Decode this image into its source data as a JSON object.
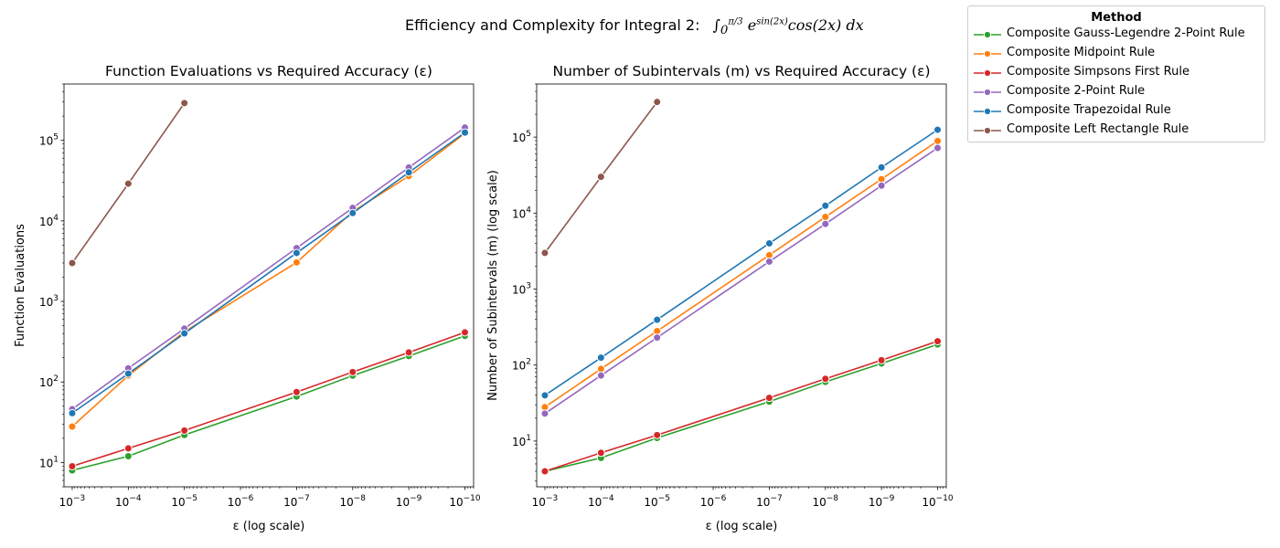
{
  "figure": {
    "suptitle_text": "Efficiency and Complexity for Integral 2:",
    "suptitle_math": "∫₀^(π/3) e^(sin(2x)) cos(2x) dx"
  },
  "legend": {
    "title": "Method",
    "items": [
      {
        "label": "Composite Gauss-Legendre 2-Point Rule",
        "color": "#2ca02c"
      },
      {
        "label": "Composite Midpoint Rule",
        "color": "#ff7f0e"
      },
      {
        "label": "Composite Simpsons First Rule",
        "color": "#d62728"
      },
      {
        "label": "Composite 2-Point Rule",
        "color": "#9467bd"
      },
      {
        "label": "Composite Trapezoidal Rule",
        "color": "#1f77b4"
      },
      {
        "label": "Composite Left Rectangle Rule",
        "color": "#8c564b"
      }
    ]
  },
  "chart_data": [
    {
      "type": "line",
      "title": "Function Evaluations vs Required Accuracy (ε)",
      "xlabel": "ε (log scale)",
      "ylabel": "Function Evaluations",
      "xscale": "log",
      "yscale": "log",
      "xlim": [
        0.0014,
        7e-11
      ],
      "ylim": [
        5,
        500000
      ],
      "x_ticks": [
        0.001,
        0.0001,
        1e-05,
        1e-06,
        1e-07,
        1e-08,
        1e-09,
        1e-10
      ],
      "y_ticks": [
        10,
        100,
        1000,
        10000,
        100000
      ],
      "legend": "outside-upper-right",
      "grid": false,
      "series": [
        {
          "name": "Composite Gauss-Legendre 2-Point Rule",
          "color": "#2ca02c",
          "x": [
            0.001,
            0.0001,
            1e-05,
            1e-07,
            1e-08,
            1e-09,
            1e-10
          ],
          "y": [
            8,
            12,
            22,
            66,
            120,
            210,
            374
          ]
        },
        {
          "name": "Composite Midpoint Rule",
          "color": "#ff7f0e",
          "x": [
            0.001,
            0.0001,
            1e-05,
            1e-07,
            1e-08,
            1e-09,
            1e-10
          ],
          "y": [
            28,
            120,
            420,
            3050,
            13000,
            36000,
            122000
          ]
        },
        {
          "name": "Composite Simpsons First Rule",
          "color": "#d62728",
          "x": [
            0.001,
            0.0001,
            1e-05,
            1e-07,
            1e-08,
            1e-09,
            1e-10
          ],
          "y": [
            9,
            15,
            25,
            75,
            133,
            233,
            413
          ]
        },
        {
          "name": "Composite 2-Point Rule",
          "color": "#9467bd",
          "x": [
            0.001,
            0.0001,
            1e-05,
            1e-07,
            1e-08,
            1e-09,
            1e-10
          ],
          "y": [
            46,
            148,
            460,
            4600,
            14500,
            46000,
            144000
          ]
        },
        {
          "name": "Composite Trapezoidal Rule",
          "color": "#1f77b4",
          "x": [
            0.001,
            0.0001,
            1e-05,
            1e-07,
            1e-08,
            1e-09,
            1e-10
          ],
          "y": [
            41,
            127,
            401,
            4000,
            12500,
            40000,
            125000
          ]
        },
        {
          "name": "Composite Left Rectangle Rule",
          "color": "#8c564b",
          "x": [
            0.001,
            0.0001,
            1e-05
          ],
          "y": [
            3000,
            29000,
            290000
          ]
        }
      ]
    },
    {
      "type": "line",
      "title": "Number of Subintervals (m) vs Required Accuracy (ε)",
      "xlabel": "ε (log scale)",
      "ylabel": "Number of Subintervals (m) (log scale)",
      "xscale": "log",
      "yscale": "log",
      "xlim": [
        0.0014,
        7e-11
      ],
      "ylim": [
        2.5,
        500000
      ],
      "x_ticks": [
        0.001,
        0.0001,
        1e-05,
        1e-06,
        1e-07,
        1e-08,
        1e-09,
        1e-10
      ],
      "y_ticks": [
        10,
        100,
        1000,
        10000,
        100000
      ],
      "legend": "outside-upper-right",
      "grid": false,
      "series": [
        {
          "name": "Composite Gauss-Legendre 2-Point Rule",
          "color": "#2ca02c",
          "x": [
            0.001,
            0.0001,
            1e-05,
            1e-07,
            1e-08,
            1e-09,
            1e-10
          ],
          "y": [
            4,
            6,
            11,
            33,
            60,
            105,
            187
          ]
        },
        {
          "name": "Composite Midpoint Rule",
          "color": "#ff7f0e",
          "x": [
            0.001,
            0.0001,
            1e-05,
            1e-07,
            1e-08,
            1e-09,
            1e-10
          ],
          "y": [
            28,
            89,
            280,
            2800,
            8900,
            28000,
            89000
          ]
        },
        {
          "name": "Composite Simpsons First Rule",
          "color": "#d62728",
          "x": [
            0.001,
            0.0001,
            1e-05,
            1e-07,
            1e-08,
            1e-09,
            1e-10
          ],
          "y": [
            4,
            7,
            12,
            37,
            66,
            116,
            206
          ]
        },
        {
          "name": "Composite 2-Point Rule",
          "color": "#9467bd",
          "x": [
            0.001,
            0.0001,
            1e-05,
            1e-07,
            1e-08,
            1e-09,
            1e-10
          ],
          "y": [
            23,
            73,
            230,
            2300,
            7200,
            23000,
            72000
          ]
        },
        {
          "name": "Composite Trapezoidal Rule",
          "color": "#1f77b4",
          "x": [
            0.001,
            0.0001,
            1e-05,
            1e-07,
            1e-08,
            1e-09,
            1e-10
          ],
          "y": [
            40,
            125,
            395,
            4000,
            12500,
            40000,
            125000
          ]
        },
        {
          "name": "Composite Left Rectangle Rule",
          "color": "#8c564b",
          "x": [
            0.001,
            0.0001,
            1e-05
          ],
          "y": [
            3000,
            30000,
            290000
          ]
        }
      ]
    }
  ]
}
